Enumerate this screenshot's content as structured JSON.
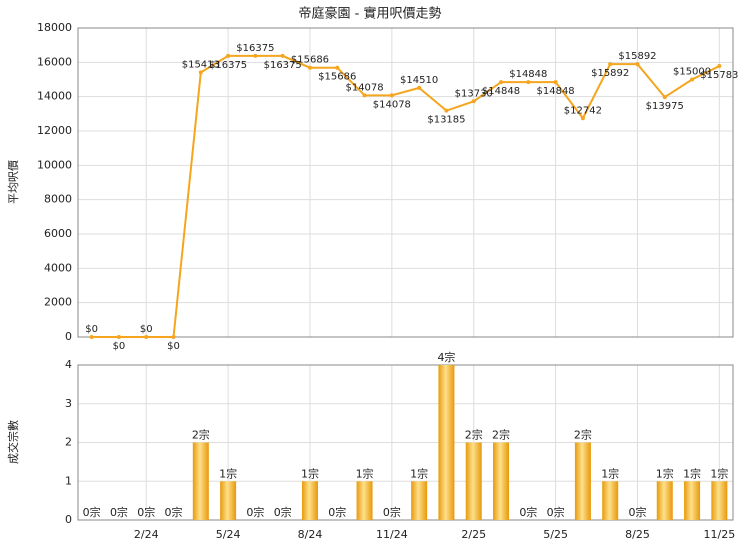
{
  "chart_data": [
    {
      "type": "line",
      "title": "帝庭豪園 - 實用呎價走勢",
      "y_label": "平均呎價",
      "color": "#f5a51e",
      "grid": true,
      "categories": [
        null,
        null,
        "2/24",
        null,
        null,
        "5/24",
        null,
        null,
        "8/24",
        null,
        null,
        "11/24",
        null,
        null,
        "2/25",
        null,
        null,
        "5/25",
        null,
        null,
        "8/25",
        null,
        null,
        "11/25"
      ],
      "values": [
        0,
        0,
        0,
        0,
        15413,
        16375,
        16375,
        16375,
        15686,
        15686,
        14078,
        14078,
        14510,
        13185,
        13730,
        14848,
        14848,
        14848,
        12742,
        15892,
        15892,
        13975,
        15000,
        15783
      ],
      "value_labels": [
        "$0",
        "$0",
        "$0",
        "$0",
        "$15413",
        "$16375",
        "$16375",
        "$16375",
        "$15686",
        "$15686",
        "$14078",
        "$14078",
        "$14510",
        "$13185",
        "$13730",
        "$14848",
        "$14848",
        "$14848",
        "$12742",
        "$15892",
        "$15892",
        "$13975",
        "$15000",
        "$15783"
      ],
      "ylim": [
        0,
        18000
      ],
      "yticks": [
        0,
        2000,
        4000,
        6000,
        8000,
        10000,
        12000,
        14000,
        16000,
        18000
      ]
    },
    {
      "type": "bar",
      "y_label": "成交宗數",
      "color": "#f0a818",
      "grid": true,
      "categories": [
        null,
        null,
        "2/24",
        null,
        null,
        "5/24",
        null,
        null,
        "8/24",
        null,
        null,
        "11/24",
        null,
        null,
        "2/25",
        null,
        null,
        "5/25",
        null,
        null,
        "8/25",
        null,
        null,
        "11/25"
      ],
      "values": [
        0,
        0,
        0,
        0,
        2,
        1,
        0,
        0,
        1,
        0,
        1,
        0,
        1,
        4,
        2,
        2,
        0,
        0,
        2,
        1,
        0,
        1,
        1,
        1
      ],
      "value_labels": [
        "0宗",
        "0宗",
        "0宗",
        "0宗",
        "2宗",
        "1宗",
        "0宗",
        "0宗",
        "1宗",
        "0宗",
        "1宗",
        "0宗",
        "1宗",
        "4宗",
        "2宗",
        "2宗",
        "0宗",
        "0宗",
        "2宗",
        "1宗",
        "0宗",
        "1宗",
        "1宗",
        "1宗"
      ],
      "ylim": [
        0,
        4
      ],
      "yticks": [
        0,
        1,
        2,
        3,
        4
      ]
    }
  ]
}
